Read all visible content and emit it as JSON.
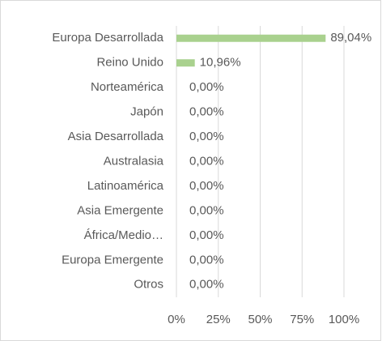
{
  "chart_data": {
    "type": "bar",
    "orientation": "horizontal",
    "categories": [
      "Europa Desarrollada",
      "Reino Unido",
      "Norteamérica",
      "Japón",
      "Asia Desarrollada",
      "Australasia",
      "Latinoamérica",
      "Asia Emergente",
      "África/Medio…",
      "Europa Emergente",
      "Otros"
    ],
    "values": [
      89.04,
      10.96,
      0,
      0,
      0,
      0,
      0,
      0,
      0,
      0,
      0
    ],
    "value_labels": [
      "89,04%",
      "10,96%",
      "0,00%",
      "0,00%",
      "0,00%",
      "0,00%",
      "0,00%",
      "0,00%",
      "0,00%",
      "0,00%",
      "0,00%"
    ],
    "color": "#a9d18e",
    "xlim": [
      0,
      100
    ],
    "xticks": [
      {
        "value": 0,
        "label": "0%"
      },
      {
        "value": 25,
        "label": "25%"
      },
      {
        "value": 50,
        "label": "50%"
      },
      {
        "value": 75,
        "label": "75%"
      },
      {
        "value": 100,
        "label": "100%"
      }
    ],
    "grid": true
  }
}
